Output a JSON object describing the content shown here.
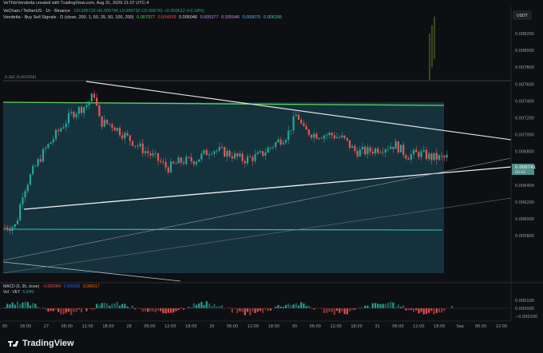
{
  "header": {
    "publish_line": "VeThōrVendetta created with TradingView.com, Aug 31, 2026 21:07 UTC-4",
    "symbol_line": "VeChain / TetherUS · 1h · Binance",
    "ohlc": "O0.006733 H0.006746 L0.006732 C0.006741 +0.000012 (+0.18%)",
    "indicator_line": "Vendetta - Buy Sell Signals · D (close, 200, 1, 50, 25, 50, 100, 200)",
    "indicator_values": [
      "0.007377",
      "0.004933",
      "0.005046",
      "0.005377",
      "0.005046",
      "0.005070",
      "0.006155"
    ],
    "currency": "USDT"
  },
  "price_axis": {
    "ticks": [
      "0.008200",
      "0.008000",
      "0.007800",
      "0.007600",
      "0.007400",
      "0.007200",
      "0.007000",
      "0.006800",
      "0.006600",
      "0.006400",
      "0.006200",
      "0.006000",
      "0.005800"
    ],
    "current_price": "0.006741",
    "current_sub": "00:42",
    "fib_label": "0.382 (0.007656)"
  },
  "macd_panel": {
    "label": "MACD (5, 35, close)",
    "values": [
      "−0.000004",
      "0.000005",
      "0.000017"
    ],
    "vol_label": "Vol · VET",
    "vol_value": "5.54M",
    "ticks": [
      "0.000100",
      "0.000000",
      "−0.000100"
    ]
  },
  "time_axis": {
    "ticks": [
      "00",
      "18:00",
      "27",
      "06:00",
      "12:00",
      "18:00",
      "28",
      "06:00",
      "12:00",
      "18:00",
      "29",
      "06:00",
      "12:00",
      "18:00",
      "30",
      "06:00",
      "12:00",
      "18:00",
      "31",
      "06:00",
      "12:00",
      "18:00",
      "Sep",
      "06:00",
      "12:00"
    ]
  },
  "footer": {
    "brand": "TradingView"
  },
  "colors": {
    "up": "#26a69a",
    "down": "#ef5350",
    "bg": "#0e0f12",
    "zone": "#15303a",
    "green_line": "#4caf50",
    "trend_line": "#d8d8d8"
  }
}
